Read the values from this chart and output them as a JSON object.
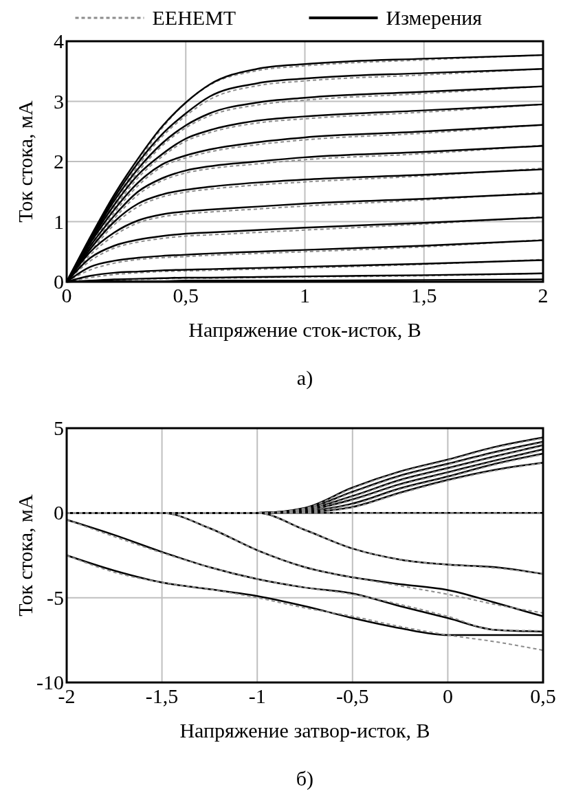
{
  "chart_data": [
    {
      "type": "line",
      "xlabel": "Напряжение сток-исток, В",
      "ylabel": "Ток стока, мА",
      "annotations": [
        "а)"
      ],
      "legend": "top",
      "grid": true,
      "xlim": [
        0,
        2
      ],
      "ylim": [
        0,
        4
      ],
      "xticks": [
        0,
        {
          "value": 0.5,
          "label": "0,5"
        },
        1,
        {
          "value": 1.5,
          "label": "1,5"
        },
        2
      ],
      "yticks": [
        0,
        1,
        2,
        3,
        4
      ],
      "x": [
        0,
        0.1,
        0.2,
        0.3,
        0.4,
        0.5,
        0.6,
        0.8,
        1,
        1.5,
        2
      ],
      "series": [
        {
          "name": "EEHEMT",
          "color": "#8c8c8c",
          "line_style": "dashed",
          "values": [
            0,
            0.72,
            1.4,
            2.0,
            2.55,
            2.98,
            3.27,
            3.51,
            3.59,
            3.69,
            3.77
          ]
        },
        {
          "color": "#8c8c8c",
          "line_style": "dashed",
          "values": [
            0,
            0.7,
            1.35,
            1.93,
            2.41,
            2.76,
            3.03,
            3.26,
            3.34,
            3.44,
            3.54
          ]
        },
        {
          "color": "#8c8c8c",
          "line_style": "dashed",
          "values": [
            0,
            0.67,
            1.3,
            1.83,
            2.26,
            2.56,
            2.76,
            2.94,
            3.02,
            3.13,
            3.25
          ]
        },
        {
          "color": "#8c8c8c",
          "line_style": "dashed",
          "values": [
            0,
            0.64,
            1.23,
            1.73,
            2.08,
            2.34,
            2.48,
            2.64,
            2.71,
            2.82,
            2.95
          ]
        },
        {
          "color": "#8c8c8c",
          "line_style": "dashed",
          "values": [
            0,
            0.61,
            1.15,
            1.6,
            1.91,
            2.06,
            2.16,
            2.28,
            2.36,
            2.47,
            2.61
          ]
        },
        {
          "color": "#8c8c8c",
          "line_style": "dashed",
          "values": [
            0,
            0.56,
            1.05,
            1.45,
            1.68,
            1.81,
            1.88,
            1.96,
            2.03,
            2.13,
            2.27
          ]
        },
        {
          "color": "#8c8c8c",
          "line_style": "dashed",
          "values": [
            0,
            0.5,
            0.95,
            1.25,
            1.41,
            1.49,
            1.54,
            1.61,
            1.66,
            1.76,
            1.89
          ]
        },
        {
          "color": "#8c8c8c",
          "line_style": "dashed",
          "values": [
            0,
            0.45,
            0.77,
            0.98,
            1.08,
            1.13,
            1.16,
            1.21,
            1.26,
            1.36,
            1.49
          ]
        },
        {
          "color": "#8c8c8c",
          "line_style": "dashed",
          "values": [
            0,
            0.35,
            0.56,
            0.66,
            0.72,
            0.76,
            0.78,
            0.82,
            0.86,
            0.96,
            1.08
          ]
        },
        {
          "color": "#8c8c8c",
          "line_style": "dashed",
          "values": [
            0,
            0.2,
            0.31,
            0.37,
            0.4,
            0.42,
            0.44,
            0.47,
            0.5,
            0.58,
            0.7
          ]
        },
        {
          "color": "#8c8c8c",
          "line_style": "dashed",
          "values": [
            0,
            0.07,
            0.12,
            0.15,
            0.17,
            0.18,
            0.19,
            0.21,
            0.23,
            0.29,
            0.37
          ]
        },
        {
          "color": "#8c8c8c",
          "line_style": "dashed",
          "values": [
            0,
            0.01,
            0.03,
            0.04,
            0.05,
            0.06,
            0.06,
            0.07,
            0.08,
            0.1,
            0.14
          ]
        },
        {
          "name": "Измерения",
          "color": "#000000",
          "line_style": "solid",
          "values": [
            0,
            0.75,
            1.45,
            2.05,
            2.58,
            2.98,
            3.28,
            3.54,
            3.62,
            3.71,
            3.77
          ]
        },
        {
          "color": "#000000",
          "line_style": "solid",
          "values": [
            0,
            0.73,
            1.4,
            1.98,
            2.45,
            2.8,
            3.08,
            3.3,
            3.38,
            3.47,
            3.54
          ]
        },
        {
          "color": "#000000",
          "line_style": "solid",
          "values": [
            0,
            0.7,
            1.35,
            1.88,
            2.3,
            2.6,
            2.8,
            2.98,
            3.06,
            3.16,
            3.25
          ]
        },
        {
          "color": "#000000",
          "line_style": "solid",
          "values": [
            0,
            0.68,
            1.28,
            1.78,
            2.12,
            2.38,
            2.52,
            2.68,
            2.75,
            2.85,
            2.95
          ]
        },
        {
          "color": "#000000",
          "line_style": "solid",
          "values": [
            0,
            0.65,
            1.2,
            1.65,
            1.95,
            2.1,
            2.2,
            2.32,
            2.4,
            2.5,
            2.61
          ]
        },
        {
          "color": "#000000",
          "line_style": "solid",
          "values": [
            0,
            0.6,
            1.1,
            1.5,
            1.72,
            1.85,
            1.92,
            2.0,
            2.07,
            2.16,
            2.26
          ]
        },
        {
          "color": "#000000",
          "line_style": "solid",
          "values": [
            0,
            0.55,
            1.0,
            1.3,
            1.45,
            1.53,
            1.58,
            1.65,
            1.7,
            1.78,
            1.87
          ]
        },
        {
          "color": "#000000",
          "line_style": "solid",
          "values": [
            0,
            0.5,
            0.82,
            1.02,
            1.12,
            1.17,
            1.2,
            1.25,
            1.3,
            1.38,
            1.47
          ]
        },
        {
          "color": "#000000",
          "line_style": "solid",
          "values": [
            0,
            0.4,
            0.6,
            0.7,
            0.76,
            0.8,
            0.82,
            0.86,
            0.9,
            0.98,
            1.07
          ]
        },
        {
          "color": "#000000",
          "line_style": "solid",
          "values": [
            0,
            0.25,
            0.35,
            0.4,
            0.43,
            0.45,
            0.47,
            0.5,
            0.53,
            0.6,
            0.69
          ]
        },
        {
          "color": "#000000",
          "line_style": "solid",
          "values": [
            0,
            0.1,
            0.15,
            0.17,
            0.19,
            0.2,
            0.21,
            0.23,
            0.25,
            0.3,
            0.36
          ]
        },
        {
          "color": "#000000",
          "line_style": "solid",
          "values": [
            0,
            0.02,
            0.04,
            0.05,
            0.06,
            0.07,
            0.07,
            0.08,
            0.09,
            0.11,
            0.14
          ]
        },
        {
          "color": "#000000",
          "line_style": "solid",
          "values": [
            0,
            0.01,
            0.01,
            0.01,
            0.01,
            0.02,
            0.02,
            0.02,
            0.02,
            0.03,
            0.04
          ]
        }
      ]
    },
    {
      "type": "line",
      "xlabel": "Напряжение затвор-исток, В",
      "ylabel": "Ток стока, мА",
      "annotations": [
        "б)"
      ],
      "grid": true,
      "xlim": [
        -2,
        0.5
      ],
      "ylim": [
        -10,
        5
      ],
      "xticks": [
        -2,
        {
          "value": -1.5,
          "label": "-1,5"
        },
        -1,
        {
          "value": -0.5,
          "label": "-0,5"
        },
        0,
        {
          "value": 0.5,
          "label": "0,5"
        }
      ],
      "yticks": [
        -10,
        -5,
        0,
        5
      ],
      "x": [
        -2,
        -1.75,
        -1.5,
        -1.25,
        -1,
        -0.75,
        -0.5,
        -0.25,
        0,
        0.25,
        0.5
      ],
      "series": [
        {
          "color": "#000000",
          "line_style": "solid",
          "values": [
            0,
            0,
            0,
            0,
            0,
            0.3,
            1.5,
            2.45,
            3.15,
            3.9,
            4.45
          ]
        },
        {
          "color": "#000000",
          "line_style": "solid",
          "values": [
            0,
            0,
            0,
            0,
            0,
            0.25,
            1.25,
            2.2,
            2.9,
            3.6,
            4.2
          ]
        },
        {
          "color": "#000000",
          "line_style": "solid",
          "values": [
            0,
            0,
            0,
            0,
            0,
            0.2,
            1.0,
            1.95,
            2.65,
            3.35,
            4.0
          ]
        },
        {
          "color": "#000000",
          "line_style": "solid",
          "values": [
            0,
            0,
            0,
            0,
            0,
            0.15,
            0.8,
            1.7,
            2.4,
            3.1,
            3.75
          ]
        },
        {
          "color": "#000000",
          "line_style": "solid",
          "values": [
            0,
            0,
            0,
            0,
            0,
            0.1,
            0.55,
            1.45,
            2.15,
            2.9,
            3.5
          ]
        },
        {
          "color": "#000000",
          "line_style": "solid",
          "values": [
            0,
            0,
            0,
            0,
            0,
            0.05,
            0.35,
            1.2,
            1.95,
            2.55,
            2.96
          ]
        },
        {
          "color": "#000000",
          "line_style": "solid",
          "values": [
            0,
            0,
            0,
            0,
            0,
            -1.0,
            -2.1,
            -2.75,
            -3.05,
            -3.2,
            -3.6
          ]
        },
        {
          "color": "#000000",
          "line_style": "solid",
          "values": [
            0,
            0,
            0,
            -0.9,
            -2.2,
            -3.2,
            -3.8,
            -4.2,
            -4.55,
            -5.3,
            -6.1
          ]
        },
        {
          "color": "#000000",
          "line_style": "solid",
          "values": [
            -0.4,
            -1.3,
            -2.3,
            -3.2,
            -3.9,
            -4.4,
            -4.75,
            -5.5,
            -6.2,
            -6.9,
            -7.0
          ]
        },
        {
          "color": "#000000",
          "line_style": "solid",
          "values": [
            -2.5,
            -3.4,
            -4.1,
            -4.5,
            -4.9,
            -5.5,
            -6.2,
            -6.8,
            -7.2,
            -7.2,
            -7.2
          ]
        },
        {
          "color": "#000000",
          "line_style": "solid",
          "values": [
            0,
            0,
            0,
            0,
            0,
            0,
            0,
            0,
            0,
            0,
            0
          ]
        },
        {
          "color": "#8c8c8c",
          "line_style": "dashed",
          "values": [
            0,
            0,
            0,
            0,
            0,
            0.28,
            1.45,
            2.4,
            3.1,
            3.85,
            4.4
          ]
        },
        {
          "color": "#8c8c8c",
          "line_style": "dashed",
          "values": [
            0,
            0,
            0,
            0,
            0,
            0.22,
            1.2,
            2.15,
            2.85,
            3.55,
            4.15
          ]
        },
        {
          "color": "#8c8c8c",
          "line_style": "dashed",
          "values": [
            0,
            0,
            0,
            0,
            0,
            0.18,
            0.95,
            1.9,
            2.6,
            3.3,
            3.95
          ]
        },
        {
          "color": "#8c8c8c",
          "line_style": "dashed",
          "values": [
            0,
            0,
            0,
            0,
            0,
            0.13,
            0.75,
            1.65,
            2.35,
            3.05,
            3.7
          ]
        },
        {
          "color": "#8c8c8c",
          "line_style": "dashed",
          "values": [
            0,
            0,
            0,
            0,
            0,
            0.08,
            0.5,
            1.4,
            2.1,
            2.85,
            3.45
          ]
        },
        {
          "color": "#8c8c8c",
          "line_style": "dashed",
          "values": [
            0,
            0,
            0,
            0,
            0,
            0.04,
            0.32,
            1.15,
            1.9,
            2.5,
            2.94
          ]
        },
        {
          "color": "#8c8c8c",
          "line_style": "dashed",
          "values": [
            0,
            0,
            0,
            0,
            0,
            -1.0,
            -2.1,
            -2.75,
            -3.05,
            -3.25,
            -3.6
          ]
        },
        {
          "color": "#8c8c8c",
          "line_style": "dashed",
          "values": [
            0,
            0,
            0,
            -0.9,
            -2.2,
            -3.2,
            -3.8,
            -4.3,
            -4.8,
            -5.4,
            -5.9
          ]
        },
        {
          "color": "#8c8c8c",
          "line_style": "dashed",
          "values": [
            -0.4,
            -1.4,
            -2.35,
            -3.2,
            -3.9,
            -4.4,
            -4.8,
            -5.4,
            -6.1,
            -6.9,
            -6.95
          ]
        },
        {
          "color": "#8c8c8c",
          "line_style": "dashed",
          "values": [
            -2.5,
            -3.5,
            -4.1,
            -4.5,
            -5.0,
            -5.6,
            -6.1,
            -6.7,
            -7.2,
            -7.6,
            -8.1
          ]
        },
        {
          "color": "#8c8c8c",
          "line_style": "dashed",
          "values": [
            0,
            0,
            0,
            0,
            0,
            0,
            0,
            0,
            0,
            0,
            0
          ]
        }
      ]
    }
  ]
}
